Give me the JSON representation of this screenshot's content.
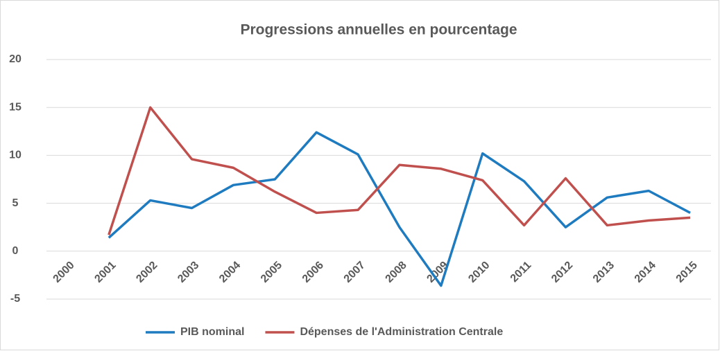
{
  "chart_data": {
    "type": "line",
    "title": "Progressions annuelles en pourcentage",
    "categories": [
      "2000",
      "2001",
      "2002",
      "2003",
      "2004",
      "2005",
      "2006",
      "2007",
      "2008",
      "2009",
      "2010",
      "2011",
      "2012",
      "2013",
      "2014",
      "2015"
    ],
    "series": [
      {
        "name": "PIB nominal",
        "color": "#1f7bbf",
        "values": [
          null,
          1.4,
          5.3,
          4.5,
          6.9,
          7.5,
          12.4,
          10.1,
          2.5,
          -3.6,
          10.2,
          7.3,
          2.5,
          5.6,
          6.3,
          4.0
        ]
      },
      {
        "name": "Dépenses de l'Administration Centrale",
        "color": "#c0504d",
        "values": [
          null,
          1.7,
          15.0,
          9.6,
          8.7,
          6.2,
          4.0,
          4.3,
          9.0,
          8.6,
          7.4,
          2.7,
          7.6,
          2.7,
          3.2,
          3.5
        ]
      }
    ],
    "ylim": [
      -5,
      20
    ],
    "yticks": [
      -5,
      0,
      5,
      10,
      15,
      20
    ],
    "grid": true,
    "legend": "bottom"
  }
}
